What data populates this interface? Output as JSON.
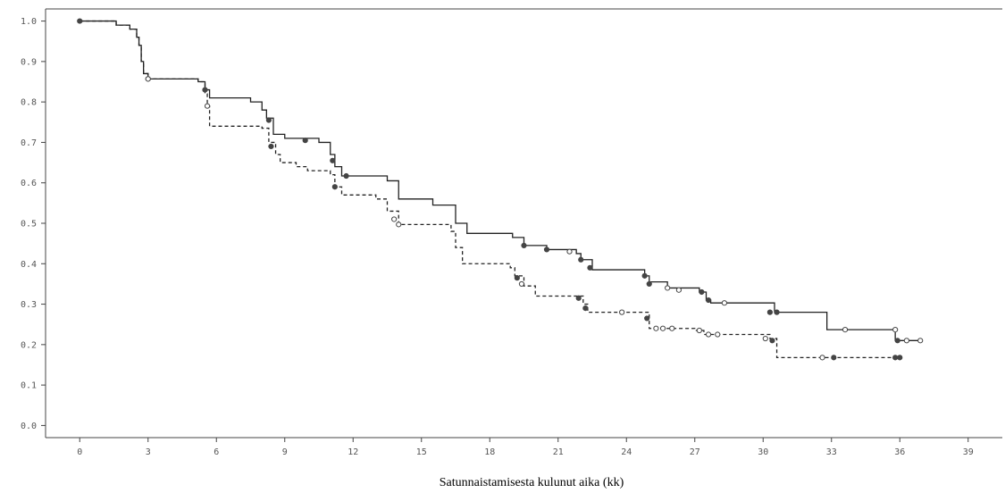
{
  "chart_data": {
    "type": "line",
    "xlabel": "Satunnaistamisesta kulunut aika (kk)",
    "ylabel": "",
    "xlim": [
      -1.5,
      40.5
    ],
    "ylim": [
      -0.03,
      1.03
    ],
    "x_ticks": [
      0,
      3,
      6,
      9,
      12,
      15,
      18,
      21,
      24,
      27,
      30,
      33,
      36,
      39
    ],
    "x_tick_labels": [
      "0",
      "3",
      "6",
      "9",
      "12",
      "15",
      "18",
      "21",
      "24",
      "27",
      "30",
      "33",
      "36",
      "39"
    ],
    "y_ticks": [
      0.0,
      0.1,
      0.2,
      0.3,
      0.4,
      0.5,
      0.6,
      0.7,
      0.8,
      0.9,
      1.0
    ],
    "y_tick_labels": [
      "0.0",
      "0.1",
      "0.2",
      "0.3",
      "0.4",
      "0.5",
      "0.6",
      "0.7",
      "0.8",
      "0.9",
      "1.0"
    ],
    "grid": false,
    "colors": {
      "line": "#222222",
      "axis": "#444444",
      "tick_text": "#555555"
    },
    "series": [
      {
        "style": "solid",
        "steps": [
          [
            0,
            1.0
          ],
          [
            1.6,
            0.99
          ],
          [
            2.2,
            0.98
          ],
          [
            2.5,
            0.96
          ],
          [
            2.6,
            0.94
          ],
          [
            2.7,
            0.9
          ],
          [
            2.8,
            0.87
          ],
          [
            3.0,
            0.857
          ],
          [
            5.2,
            0.85
          ],
          [
            5.5,
            0.83
          ],
          [
            5.7,
            0.81
          ],
          [
            7.5,
            0.8
          ],
          [
            8.0,
            0.78
          ],
          [
            8.2,
            0.76
          ],
          [
            8.5,
            0.72
          ],
          [
            9.0,
            0.71
          ],
          [
            10.5,
            0.7
          ],
          [
            11.0,
            0.67
          ],
          [
            11.2,
            0.64
          ],
          [
            11.5,
            0.617
          ],
          [
            13.5,
            0.605
          ],
          [
            14.0,
            0.56
          ],
          [
            15.5,
            0.545
          ],
          [
            16.5,
            0.5
          ],
          [
            17.0,
            0.475
          ],
          [
            19.0,
            0.465
          ],
          [
            19.5,
            0.445
          ],
          [
            20.5,
            0.435
          ],
          [
            21.8,
            0.425
          ],
          [
            22.0,
            0.41
          ],
          [
            22.5,
            0.385
          ],
          [
            24.8,
            0.37
          ],
          [
            25.0,
            0.355
          ],
          [
            25.8,
            0.34
          ],
          [
            27.2,
            0.33
          ],
          [
            27.5,
            0.31
          ],
          [
            27.7,
            0.303
          ],
          [
            30.5,
            0.28
          ],
          [
            32.8,
            0.237
          ],
          [
            35.8,
            0.21
          ],
          [
            36.9,
            0.21
          ]
        ],
        "censor": [
          [
            0,
            1.0,
            "filled"
          ],
          [
            3.0,
            0.857,
            "open"
          ],
          [
            5.5,
            0.83,
            "filled"
          ],
          [
            8.3,
            0.755,
            "filled"
          ],
          [
            9.9,
            0.705,
            "filled"
          ],
          [
            11.1,
            0.655,
            "filled"
          ],
          [
            11.7,
            0.617,
            "filled"
          ],
          [
            19.5,
            0.445,
            "filled"
          ],
          [
            20.5,
            0.435,
            "filled"
          ],
          [
            21.5,
            0.43,
            "open"
          ],
          [
            22.0,
            0.41,
            "filled"
          ],
          [
            22.4,
            0.39,
            "filled"
          ],
          [
            24.8,
            0.37,
            "filled"
          ],
          [
            25.0,
            0.35,
            "filled"
          ],
          [
            25.8,
            0.34,
            "open"
          ],
          [
            26.3,
            0.335,
            "open"
          ],
          [
            27.3,
            0.33,
            "filled"
          ],
          [
            27.6,
            0.31,
            "filled"
          ],
          [
            28.3,
            0.303,
            "open"
          ],
          [
            30.3,
            0.28,
            "filled"
          ],
          [
            30.6,
            0.28,
            "filled"
          ],
          [
            33.6,
            0.237,
            "open"
          ],
          [
            35.8,
            0.237,
            "open"
          ],
          [
            35.9,
            0.21,
            "filled"
          ],
          [
            36.3,
            0.21,
            "open"
          ],
          [
            36.9,
            0.21,
            "open"
          ]
        ]
      },
      {
        "style": "dashed",
        "steps": [
          [
            0,
            1.0
          ],
          [
            1.6,
            0.99
          ],
          [
            2.2,
            0.98
          ],
          [
            2.5,
            0.96
          ],
          [
            2.6,
            0.94
          ],
          [
            2.7,
            0.9
          ],
          [
            2.8,
            0.87
          ],
          [
            3.0,
            0.857
          ],
          [
            5.2,
            0.85
          ],
          [
            5.5,
            0.82
          ],
          [
            5.6,
            0.79
          ],
          [
            5.7,
            0.74
          ],
          [
            8.0,
            0.735
          ],
          [
            8.3,
            0.7
          ],
          [
            8.6,
            0.67
          ],
          [
            8.8,
            0.65
          ],
          [
            9.5,
            0.64
          ],
          [
            10.0,
            0.63
          ],
          [
            11.0,
            0.62
          ],
          [
            11.2,
            0.59
          ],
          [
            11.5,
            0.57
          ],
          [
            13.0,
            0.56
          ],
          [
            13.5,
            0.53
          ],
          [
            14.0,
            0.497
          ],
          [
            16.3,
            0.48
          ],
          [
            16.5,
            0.44
          ],
          [
            16.8,
            0.4
          ],
          [
            18.9,
            0.39
          ],
          [
            19.1,
            0.37
          ],
          [
            19.5,
            0.345
          ],
          [
            20.0,
            0.32
          ],
          [
            22.1,
            0.3
          ],
          [
            22.3,
            0.28
          ],
          [
            25.0,
            0.24
          ],
          [
            27.0,
            0.235
          ],
          [
            27.4,
            0.225
          ],
          [
            30.3,
            0.215
          ],
          [
            30.6,
            0.168
          ],
          [
            35.9,
            0.168
          ]
        ],
        "censor": [
          [
            3.0,
            0.857,
            "open"
          ],
          [
            5.6,
            0.79,
            "open"
          ],
          [
            8.4,
            0.69,
            "filled"
          ],
          [
            11.2,
            0.59,
            "filled"
          ],
          [
            13.8,
            0.51,
            "open"
          ],
          [
            14.0,
            0.497,
            "open"
          ],
          [
            19.2,
            0.365,
            "filled"
          ],
          [
            19.4,
            0.35,
            "open"
          ],
          [
            21.9,
            0.315,
            "filled"
          ],
          [
            22.2,
            0.29,
            "filled"
          ],
          [
            23.8,
            0.28,
            "open"
          ],
          [
            24.9,
            0.265,
            "filled"
          ],
          [
            25.3,
            0.24,
            "open"
          ],
          [
            25.6,
            0.24,
            "open"
          ],
          [
            26.0,
            0.24,
            "open"
          ],
          [
            27.2,
            0.235,
            "open"
          ],
          [
            27.6,
            0.225,
            "open"
          ],
          [
            28.0,
            0.225,
            "open"
          ],
          [
            30.1,
            0.215,
            "open"
          ],
          [
            30.4,
            0.21,
            "filled"
          ],
          [
            32.6,
            0.168,
            "open"
          ],
          [
            33.1,
            0.168,
            "filled"
          ],
          [
            35.8,
            0.168,
            "filled"
          ],
          [
            36.0,
            0.168,
            "filled"
          ]
        ]
      }
    ]
  }
}
